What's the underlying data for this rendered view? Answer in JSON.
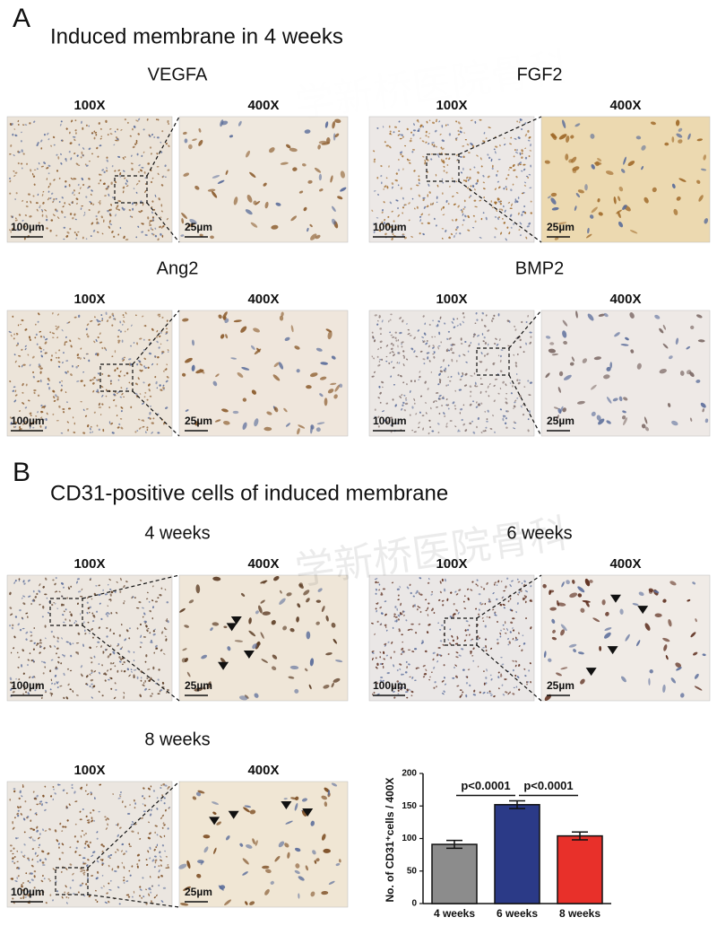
{
  "panel_a": {
    "label": "A",
    "title": "Induced membrane in 4 weeks",
    "groups": [
      {
        "name": "VEGFA",
        "low_mag": "100X",
        "high_mag": "400X",
        "low_scale": "100µm",
        "high_scale": "25µm"
      },
      {
        "name": "FGF2",
        "low_mag": "100X",
        "high_mag": "400X",
        "low_scale": "100µm",
        "high_scale": "25µm"
      },
      {
        "name": "Ang2",
        "low_mag": "100X",
        "high_mag": "400X",
        "low_scale": "100µm",
        "high_scale": "25µm"
      },
      {
        "name": "BMP2",
        "low_mag": "100X",
        "high_mag": "400X",
        "low_scale": "100µm",
        "high_scale": "25µm"
      }
    ]
  },
  "panel_b": {
    "label": "B",
    "title": "CD31-positive cells of induced membrane",
    "groups": [
      {
        "name": "4 weeks",
        "low_mag": "100X",
        "high_mag": "400X",
        "low_scale": "100µm",
        "high_scale": "25µm"
      },
      {
        "name": "6 weeks",
        "low_mag": "100X",
        "high_mag": "400X",
        "low_scale": "100µm",
        "high_scale": "25µm"
      },
      {
        "name": "8 weeks",
        "low_mag": "100X",
        "high_mag": "400X",
        "low_scale": "100µm",
        "high_scale": "25µm"
      }
    ]
  },
  "watermark": "学新桥医院骨科",
  "chart_data": {
    "type": "bar",
    "ylabel": "No. of CD31⁺cells / 400X",
    "categories": [
      "4 weeks",
      "6 weeks",
      "8 weeks"
    ],
    "values": [
      91,
      152,
      104
    ],
    "errors": [
      6,
      6,
      6
    ],
    "colors": [
      "#8c8c8c",
      "#2b3a87",
      "#e8302a"
    ],
    "ylim": [
      0,
      200
    ],
    "yticks": [
      0,
      50,
      100,
      150,
      200
    ],
    "annotations": [
      "p<0.0001",
      "p<0.0001"
    ]
  }
}
